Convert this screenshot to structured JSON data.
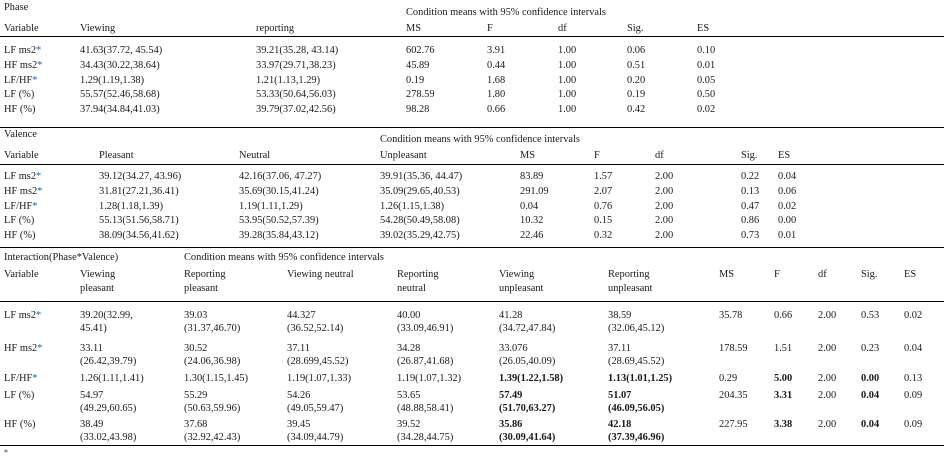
{
  "phase": {
    "label": "Phase",
    "title": "Condition means with 95% confidence intervals",
    "headers": [
      "Variable",
      "Viewing",
      "reporting",
      "MS",
      "F",
      "df",
      "Sig.",
      "ES"
    ],
    "rows": [
      {
        "variable": "LF ms2",
        "asterisk": "*",
        "cells": [
          "41.63(37.72, 45.54)",
          "39.21(35.28, 43.14)",
          "602.76",
          "3.91",
          "1.00",
          "0.06",
          "0.10"
        ]
      },
      {
        "variable": "HF ms2",
        "asterisk": "*",
        "cells": [
          "34.43(30.22,38.64)",
          "33.97(29.71,38.23)",
          "45.89",
          "0.44",
          "1.00",
          "0.51",
          "0.01"
        ]
      },
      {
        "variable": "LF/HF",
        "asterisk": "*",
        "cells": [
          "1.29(1.19,1.38)",
          "1.21(1.13,1.29)",
          "0.19",
          "1.68",
          "1.00",
          "0.20",
          "0.05"
        ]
      },
      {
        "variable": "LF (%)",
        "asterisk": "",
        "cells": [
          "55.57(52.46,58.68)",
          "53.33(50.64,56.03)",
          "278.59",
          "1.80",
          "1.00",
          "0.19",
          "0.50"
        ]
      },
      {
        "variable": "HF (%)",
        "asterisk": "",
        "cells": [
          "37.94(34.84,41.03)",
          "39.79(37.02,42.56)",
          "98.28",
          "0.66",
          "1.00",
          "0.42",
          "0.02"
        ]
      }
    ]
  },
  "valence": {
    "label": "Valence",
    "title": "Condition means with 95% confidence intervals",
    "headers": [
      "Variable",
      "Pleasant",
      "Neutral",
      "Unpleasant",
      "MS",
      "F",
      "df",
      "Sig.",
      "ES"
    ],
    "rows": [
      {
        "variable": "LF ms2",
        "asterisk": "*",
        "cells": [
          "39.12(34.27, 43.96)",
          "42.16(37.06, 47.27)",
          "39.91(35.36, 44.47)",
          "83.89",
          "1.57",
          "2.00",
          "0.22",
          "0.04"
        ]
      },
      {
        "variable": "HF ms2",
        "asterisk": "*",
        "cells": [
          "31.81(27.21,36.41)",
          "35.69(30.15,41.24)",
          "35.09(29.65,40.53)",
          "291.09",
          "2.07",
          "2.00",
          "0.13",
          "0.06"
        ]
      },
      {
        "variable": "LF/HF",
        "asterisk": "*",
        "cells": [
          "1.28(1.18,1.39)",
          "1.19(1.11,1.29)",
          "1.26(1.15,1.38)",
          "0.04",
          "0.76",
          "2.00",
          "0.47",
          "0.02"
        ]
      },
      {
        "variable": "LF (%)",
        "asterisk": "",
        "cells": [
          "55.13(51.56,58.71)",
          "53.95(50.52,57.39)",
          "54.28(50.49,58.08)",
          "10.32",
          "0.15",
          "2.00",
          "0.86",
          "0.00"
        ]
      },
      {
        "variable": "HF (%)",
        "asterisk": "",
        "cells": [
          "38.09(34.56,41.62)",
          "39.28(35.84,43.12)",
          "39.02(35.29,42.75)",
          "22.46",
          "0.32",
          "2.00",
          "0.73",
          "0.01"
        ]
      }
    ]
  },
  "interaction": {
    "label": "Interaction(Phase*Valence)",
    "title": "Condition means with 95% confidence intervals",
    "headers": [
      {
        "l1": "Variable",
        "l2": ""
      },
      {
        "l1": "Viewing",
        "l2": "pleasant"
      },
      {
        "l1": "Reporting",
        "l2": "pleasant"
      },
      {
        "l1": "Viewing neutral",
        "l2": ""
      },
      {
        "l1": "Reporting",
        "l2": "neutral"
      },
      {
        "l1": "Viewing",
        "l2": "unpleasant"
      },
      {
        "l1": "Reporting",
        "l2": "unpleasant"
      },
      {
        "l1": "MS",
        "l2": ""
      },
      {
        "l1": "F",
        "l2": ""
      },
      {
        "l1": "df",
        "l2": ""
      },
      {
        "l1": "Sig.",
        "l2": ""
      },
      {
        "l1": "ES",
        "l2": ""
      }
    ],
    "rows": [
      {
        "variable": "LF ms2",
        "asterisk": "*",
        "cells": [
          {
            "l1": "39.20(32.99,",
            "l2": "45.41)"
          },
          {
            "l1": "39.03",
            "l2": "(31.37,46.70)"
          },
          {
            "l1": "44.327",
            "l2": "(36.52,52.14)"
          },
          {
            "l1": "40.00",
            "l2": "(33.09,46.91)"
          },
          {
            "l1": "41.28",
            "l2": "(34.72,47.84)"
          },
          {
            "l1": "38.59",
            "l2": "(32.06,45.12)"
          },
          {
            "l1": "35.78",
            "l2": ""
          },
          {
            "l1": "0.66",
            "l2": ""
          },
          {
            "l1": "2.00",
            "l2": ""
          },
          {
            "l1": "0.53",
            "l2": ""
          },
          {
            "l1": "0.02",
            "l2": ""
          }
        ]
      },
      {
        "variable": "HF ms2",
        "asterisk": "*",
        "cells": [
          {
            "l1": "33.11",
            "l2": "(26.42,39.79)"
          },
          {
            "l1": "30.52",
            "l2": "(24.06,36.98)"
          },
          {
            "l1": "37.11",
            "l2": "(28.699,45.52)"
          },
          {
            "l1": "34.28",
            "l2": "(26.87,41.68)"
          },
          {
            "l1": "33.076",
            "l2": "(26.05,40.09)"
          },
          {
            "l1": "37.11",
            "l2": "(28.69,45.52)"
          },
          {
            "l1": "178.59",
            "l2": ""
          },
          {
            "l1": "1.51",
            "l2": ""
          },
          {
            "l1": "2.00",
            "l2": ""
          },
          {
            "l1": "0.23",
            "l2": ""
          },
          {
            "l1": "0.04",
            "l2": ""
          }
        ]
      },
      {
        "variable": "LF/HF",
        "asterisk": "*",
        "cells": [
          {
            "l1": "1.26(1.11,1.41)",
            "l2": ""
          },
          {
            "l1": "1.30(1.15,1.45)",
            "l2": ""
          },
          {
            "l1": "1.19(1.07,1.33)",
            "l2": ""
          },
          {
            "l1": "1.19(1.07,1.32)",
            "l2": ""
          },
          {
            "l1": "1.39(1.22,1.58)",
            "l2": "",
            "bold": true
          },
          {
            "l1": "1.13(1.01,1.25)",
            "l2": "",
            "bold": true
          },
          {
            "l1": "0.29",
            "l2": ""
          },
          {
            "l1": "5.00",
            "l2": "",
            "bold": true
          },
          {
            "l1": "2.00",
            "l2": ""
          },
          {
            "l1": "0.00",
            "l2": "",
            "bold": true
          },
          {
            "l1": "0.13",
            "l2": ""
          }
        ]
      },
      {
        "variable": "LF (%)",
        "asterisk": "",
        "cells": [
          {
            "l1": "54.97",
            "l2": "(49.29,60.65)"
          },
          {
            "l1": "55.29",
            "l2": "(50.63,59.96)"
          },
          {
            "l1": "54.26",
            "l2": "(49.05,59.47)"
          },
          {
            "l1": "53.65",
            "l2": "(48.88,58.41)"
          },
          {
            "l1": "57.49",
            "l2": "(51.70,63.27)",
            "bold": true
          },
          {
            "l1": "51.07",
            "l2": "(46.09,56.05)",
            "bold": true
          },
          {
            "l1": "204.35",
            "l2": ""
          },
          {
            "l1": "3.31",
            "l2": "",
            "bold": true
          },
          {
            "l1": "2.00",
            "l2": ""
          },
          {
            "l1": "0.04",
            "l2": "",
            "bold": true
          },
          {
            "l1": "0.09",
            "l2": ""
          }
        ]
      },
      {
        "variable": "HF (%)",
        "asterisk": "",
        "cells": [
          {
            "l1": "38.49",
            "l2": "(33.02,43.98)"
          },
          {
            "l1": "37.68",
            "l2": "(32.92,42.43)"
          },
          {
            "l1": "39.45",
            "l2": "(34.09,44.79)"
          },
          {
            "l1": "39.52",
            "l2": "(34.28,44.75)"
          },
          {
            "l1": "35.86",
            "l2": "(30.09,41.64)",
            "bold": true
          },
          {
            "l1": "42.18",
            "l2": "(37.39,46.96)",
            "bold": true
          },
          {
            "l1": "227.95",
            "l2": ""
          },
          {
            "l1": "3.38",
            "l2": "",
            "bold": true
          },
          {
            "l1": "2.00",
            "l2": ""
          },
          {
            "l1": "0.04",
            "l2": "",
            "bold": true
          },
          {
            "l1": "0.09",
            "l2": ""
          }
        ]
      }
    ]
  },
  "footnote": "*"
}
